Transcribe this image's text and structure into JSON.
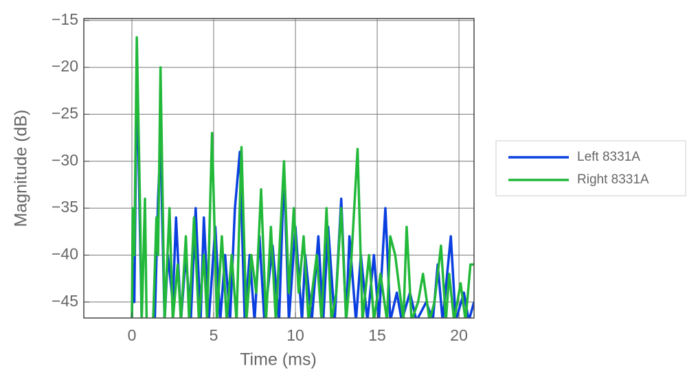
{
  "chart_data": {
    "type": "line",
    "xlabel": "Time (ms)",
    "ylabel": "Magnitude (dB)",
    "xlim": [
      -2.94,
      20.92
    ],
    "ylim": [
      -46.7,
      -14.8
    ],
    "xticks": [
      0,
      5,
      10,
      15,
      20
    ],
    "yticks": [
      {
        "value": -45,
        "label": "−45"
      },
      {
        "value": -40,
        "label": "−40"
      },
      {
        "value": -35,
        "label": "−35"
      },
      {
        "value": -30,
        "label": "−30"
      },
      {
        "value": -25,
        "label": "−25"
      },
      {
        "value": -20,
        "label": "−20"
      },
      {
        "value": -15,
        "label": "−15"
      }
    ],
    "grid": true,
    "legend": "right",
    "series": [
      {
        "name": "Left 8331A",
        "color": "#0a3fe0",
        "x": [
          0,
          0.05,
          0.15,
          0.3,
          0.5,
          0.6,
          1.4,
          1.6,
          1.75,
          2.0,
          2.2,
          2.5,
          2.7,
          3.0,
          3.3,
          3.6,
          3.9,
          4.2,
          4.4,
          4.7,
          5.1,
          5.4,
          5.7,
          6.0,
          6.3,
          6.6,
          6.9,
          7.2,
          7.5,
          7.8,
          8.1,
          8.6,
          9.0,
          9.3,
          9.6,
          10.0,
          10.4,
          10.6,
          11.0,
          11.4,
          11.7,
          12.0,
          12.4,
          12.8,
          13.1,
          13.3,
          13.7,
          14.0,
          14.4,
          14.8,
          15.1,
          15.5,
          15.8,
          16.2,
          16.5,
          17.0,
          17.4,
          18.0,
          18.4,
          18.7,
          19.0,
          19.5,
          19.8,
          20.3,
          20.6,
          20.92
        ],
        "values": [
          -47,
          -41,
          -45,
          -20,
          -38,
          -47,
          -47,
          -34,
          -28,
          -47,
          -40,
          -45,
          -36,
          -47,
          -40,
          -47,
          -35,
          -47,
          -36,
          -47,
          -37,
          -47,
          -40,
          -47,
          -35,
          -29,
          -47,
          -40,
          -47,
          -38,
          -47,
          -39,
          -47,
          -31,
          -47,
          -37,
          -47,
          -40,
          -47,
          -38,
          -47,
          -37,
          -47,
          -34,
          -47,
          -38,
          -47,
          -40,
          -47,
          -40,
          -47,
          -35,
          -47,
          -44,
          -47,
          -44,
          -47,
          -45,
          -47,
          -41,
          -47,
          -38,
          -47,
          -44,
          -47,
          -45
        ]
      },
      {
        "name": "Right 8331A",
        "color": "#22b83a",
        "x": [
          0,
          0.05,
          0.15,
          0.3,
          0.5,
          0.6,
          0.8,
          0.9,
          1.3,
          1.5,
          1.6,
          1.75,
          2.0,
          2.3,
          2.5,
          2.8,
          3.0,
          3.3,
          3.5,
          3.8,
          4.1,
          4.4,
          4.6,
          4.9,
          5.2,
          5.5,
          5.8,
          6.1,
          6.4,
          6.7,
          7.0,
          7.3,
          7.6,
          7.9,
          8.2,
          8.5,
          8.8,
          9.3,
          9.6,
          9.9,
          10.2,
          10.5,
          10.8,
          11.3,
          11.6,
          11.9,
          12.2,
          12.5,
          12.8,
          13.1,
          13.4,
          13.8,
          14.1,
          14.5,
          14.8,
          15.2,
          15.6,
          15.8,
          16.1,
          16.6,
          16.8,
          17.1,
          17.5,
          17.8,
          18.2,
          18.5,
          18.9,
          19.2,
          19.4,
          19.7,
          20.1,
          20.4,
          20.7,
          20.92
        ],
        "values": [
          -47,
          -35,
          -40,
          -16.8,
          -35,
          -47,
          -34,
          -47,
          -47,
          -36,
          -40,
          -20,
          -47,
          -35,
          -47,
          -41,
          -47,
          -38,
          -47,
          -36,
          -47,
          -40,
          -47,
          -27,
          -47,
          -38,
          -47,
          -40,
          -47,
          -28.5,
          -47,
          -40,
          -44,
          -33,
          -47,
          -37,
          -47,
          -30,
          -44,
          -35,
          -44,
          -38,
          -47,
          -40,
          -47,
          -35,
          -47,
          -44,
          -35,
          -47,
          -41,
          -28.7,
          -47,
          -40,
          -47,
          -42,
          -47,
          -38,
          -40,
          -47,
          -37,
          -47,
          -45,
          -42,
          -47,
          -45,
          -39,
          -47,
          -42,
          -47,
          -43,
          -47,
          -41,
          -41
        ]
      }
    ]
  }
}
